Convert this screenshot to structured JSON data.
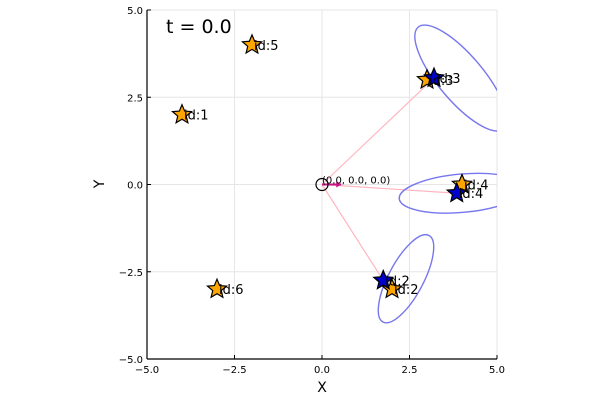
{
  "chart_data": {
    "type": "scatter",
    "annotation": "t = 0.0",
    "xlabel": "X",
    "ylabel": "Y",
    "xlim": [
      -5,
      5
    ],
    "ylim": [
      -5,
      5
    ],
    "xticks": [
      -5,
      -2.5,
      0,
      2.5,
      5
    ],
    "xtick_labels": [
      "−5.0",
      "−2.5",
      "0.0",
      "2.5",
      "5.0"
    ],
    "yticks": [
      -5,
      -2.5,
      0,
      2.5,
      5
    ],
    "ytick_labels": [
      "−5.0",
      "−2.5",
      "0.0",
      "2.5",
      "5.0"
    ],
    "grid": true,
    "robot": {
      "x": 0,
      "y": 0,
      "label": "(0.0, 0.0, 0.0)",
      "heading_deg": 0
    },
    "landmarks": [
      {
        "label": "id:1",
        "x": -4.0,
        "y": 2.0
      },
      {
        "label": "id:2",
        "x": 2.0,
        "y": -3.0
      },
      {
        "label": "id:3",
        "x": 3.0,
        "y": 3.0
      },
      {
        "label": "id:4",
        "x": 4.0,
        "y": 0.0
      },
      {
        "label": "id:5",
        "x": -2.0,
        "y": 4.0
      },
      {
        "label": "id:6",
        "x": -3.0,
        "y": -3.0
      }
    ],
    "observations": [
      {
        "label": "id:2",
        "x": 1.75,
        "y": -2.75
      },
      {
        "label": "id:3",
        "x": 3.2,
        "y": 3.05
      },
      {
        "label": "id:4",
        "x": 3.85,
        "y": -0.25
      }
    ],
    "ellipses": [
      {
        "cx": 2.4,
        "cy": -2.7,
        "rx": 1.4,
        "ry": 0.5,
        "angle_deg": 62
      },
      {
        "cx": 3.97,
        "cy": 3.05,
        "rx": 1.9,
        "ry": 0.65,
        "angle_deg": -50
      },
      {
        "cx": 4.0,
        "cy": -0.25,
        "rx": 1.8,
        "ry": 0.55,
        "angle_deg": 5
      }
    ],
    "colors": {
      "landmark": "#FFA500",
      "observation": "#0000CD",
      "ellipse": "#7777EE",
      "sight_line": "#FFB6C1",
      "heading": "#C71585",
      "grid": "#E6E6E6",
      "axis": "#000000"
    }
  }
}
